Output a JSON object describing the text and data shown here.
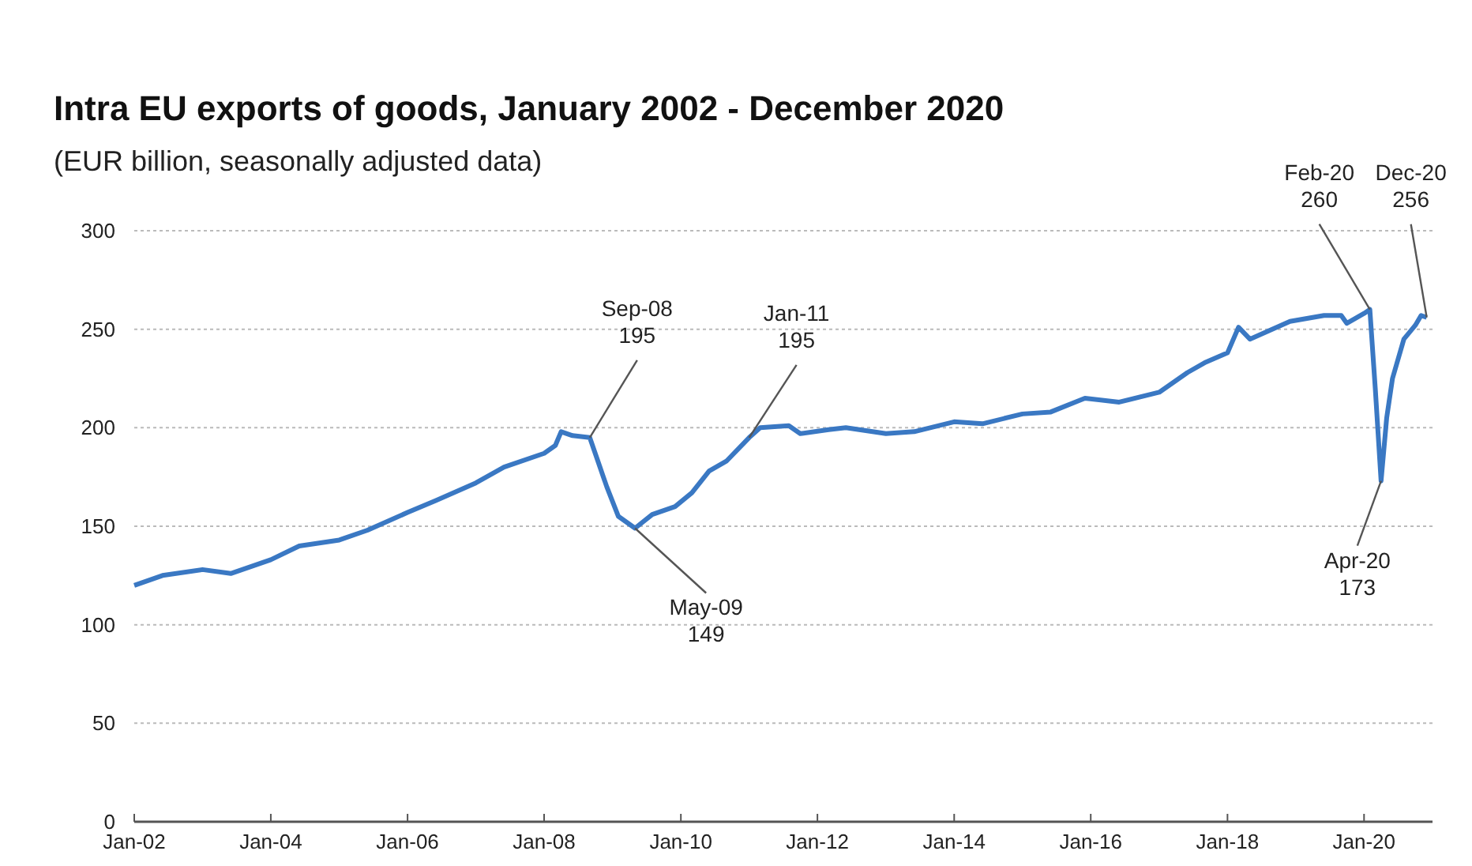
{
  "chart_data": {
    "type": "line",
    "title": "Intra EU exports of goods, January 2002 - December 2020",
    "subtitle": "(EUR billion, seasonally adjusted data)",
    "x": [
      "2002-01",
      "2002-06",
      "2003-01",
      "2003-06",
      "2004-01",
      "2004-06",
      "2005-01",
      "2005-06",
      "2006-01",
      "2006-06",
      "2007-01",
      "2007-06",
      "2008-01",
      "2008-03",
      "2008-04",
      "2008-06",
      "2008-09",
      "2008-12",
      "2009-02",
      "2009-05",
      "2009-08",
      "2009-12",
      "2010-03",
      "2010-06",
      "2010-09",
      "2011-01",
      "2011-03",
      "2011-08",
      "2011-10",
      "2012-03",
      "2012-06",
      "2013-01",
      "2013-06",
      "2014-01",
      "2014-06",
      "2015-01",
      "2015-06",
      "2015-12",
      "2016-06",
      "2017-01",
      "2017-06",
      "2017-09",
      "2018-01",
      "2018-03",
      "2018-05",
      "2018-12",
      "2019-06",
      "2019-09",
      "2019-10",
      "2020-01",
      "2020-02",
      "2020-03",
      "2020-04",
      "2020-05",
      "2020-06",
      "2020-08",
      "2020-10",
      "2020-11",
      "2020-12"
    ],
    "series": [
      {
        "color": "#3a78c3",
        "values": [
          120,
          125,
          128,
          126,
          133,
          140,
          143,
          148,
          157,
          163,
          172,
          180,
          187,
          191,
          198,
          196,
          195,
          170,
          155,
          149,
          156,
          160,
          167,
          178,
          183,
          195,
          200,
          201,
          197,
          199,
          200,
          197,
          198,
          203,
          202,
          207,
          208,
          215,
          213,
          218,
          228,
          233,
          238,
          251,
          245,
          254,
          257,
          257,
          253,
          258,
          260,
          220,
          173,
          205,
          225,
          245,
          252,
          257,
          256
        ]
      }
    ],
    "xlim": [
      "2002-01",
      "2021-01"
    ],
    "xticks": [
      {
        "value": "2002-01",
        "label": "Jan-02"
      },
      {
        "value": "2004-01",
        "label": "Jan-04"
      },
      {
        "value": "2006-01",
        "label": "Jan-06"
      },
      {
        "value": "2008-01",
        "label": "Jan-08"
      },
      {
        "value": "2010-01",
        "label": "Jan-10"
      },
      {
        "value": "2012-01",
        "label": "Jan-12"
      },
      {
        "value": "2014-01",
        "label": "Jan-14"
      },
      {
        "value": "2016-01",
        "label": "Jan-16"
      },
      {
        "value": "2018-01",
        "label": "Jan-18"
      },
      {
        "value": "2020-01",
        "label": "Jan-20"
      }
    ],
    "ylim": [
      0,
      300
    ],
    "yticks": [
      0,
      50,
      100,
      150,
      200,
      250,
      300
    ],
    "grid": "y",
    "marker": "none",
    "line_style": "solid",
    "annotations": [
      {
        "text": "Sep-08\n195",
        "x": "2008-09",
        "y": 195
      },
      {
        "text": "May-09\n149",
        "x": "2009-05",
        "y": 149
      },
      {
        "text": "Jan-11\n195",
        "x": "2011-01",
        "y": 195
      },
      {
        "text": "Feb-20\n260",
        "x": "2020-02",
        "y": 260
      },
      {
        "text": "Apr-20\n173",
        "x": "2020-04",
        "y": 173
      },
      {
        "text": "Dec-20\n256",
        "x": "2020-12",
        "y": 256
      }
    ]
  }
}
